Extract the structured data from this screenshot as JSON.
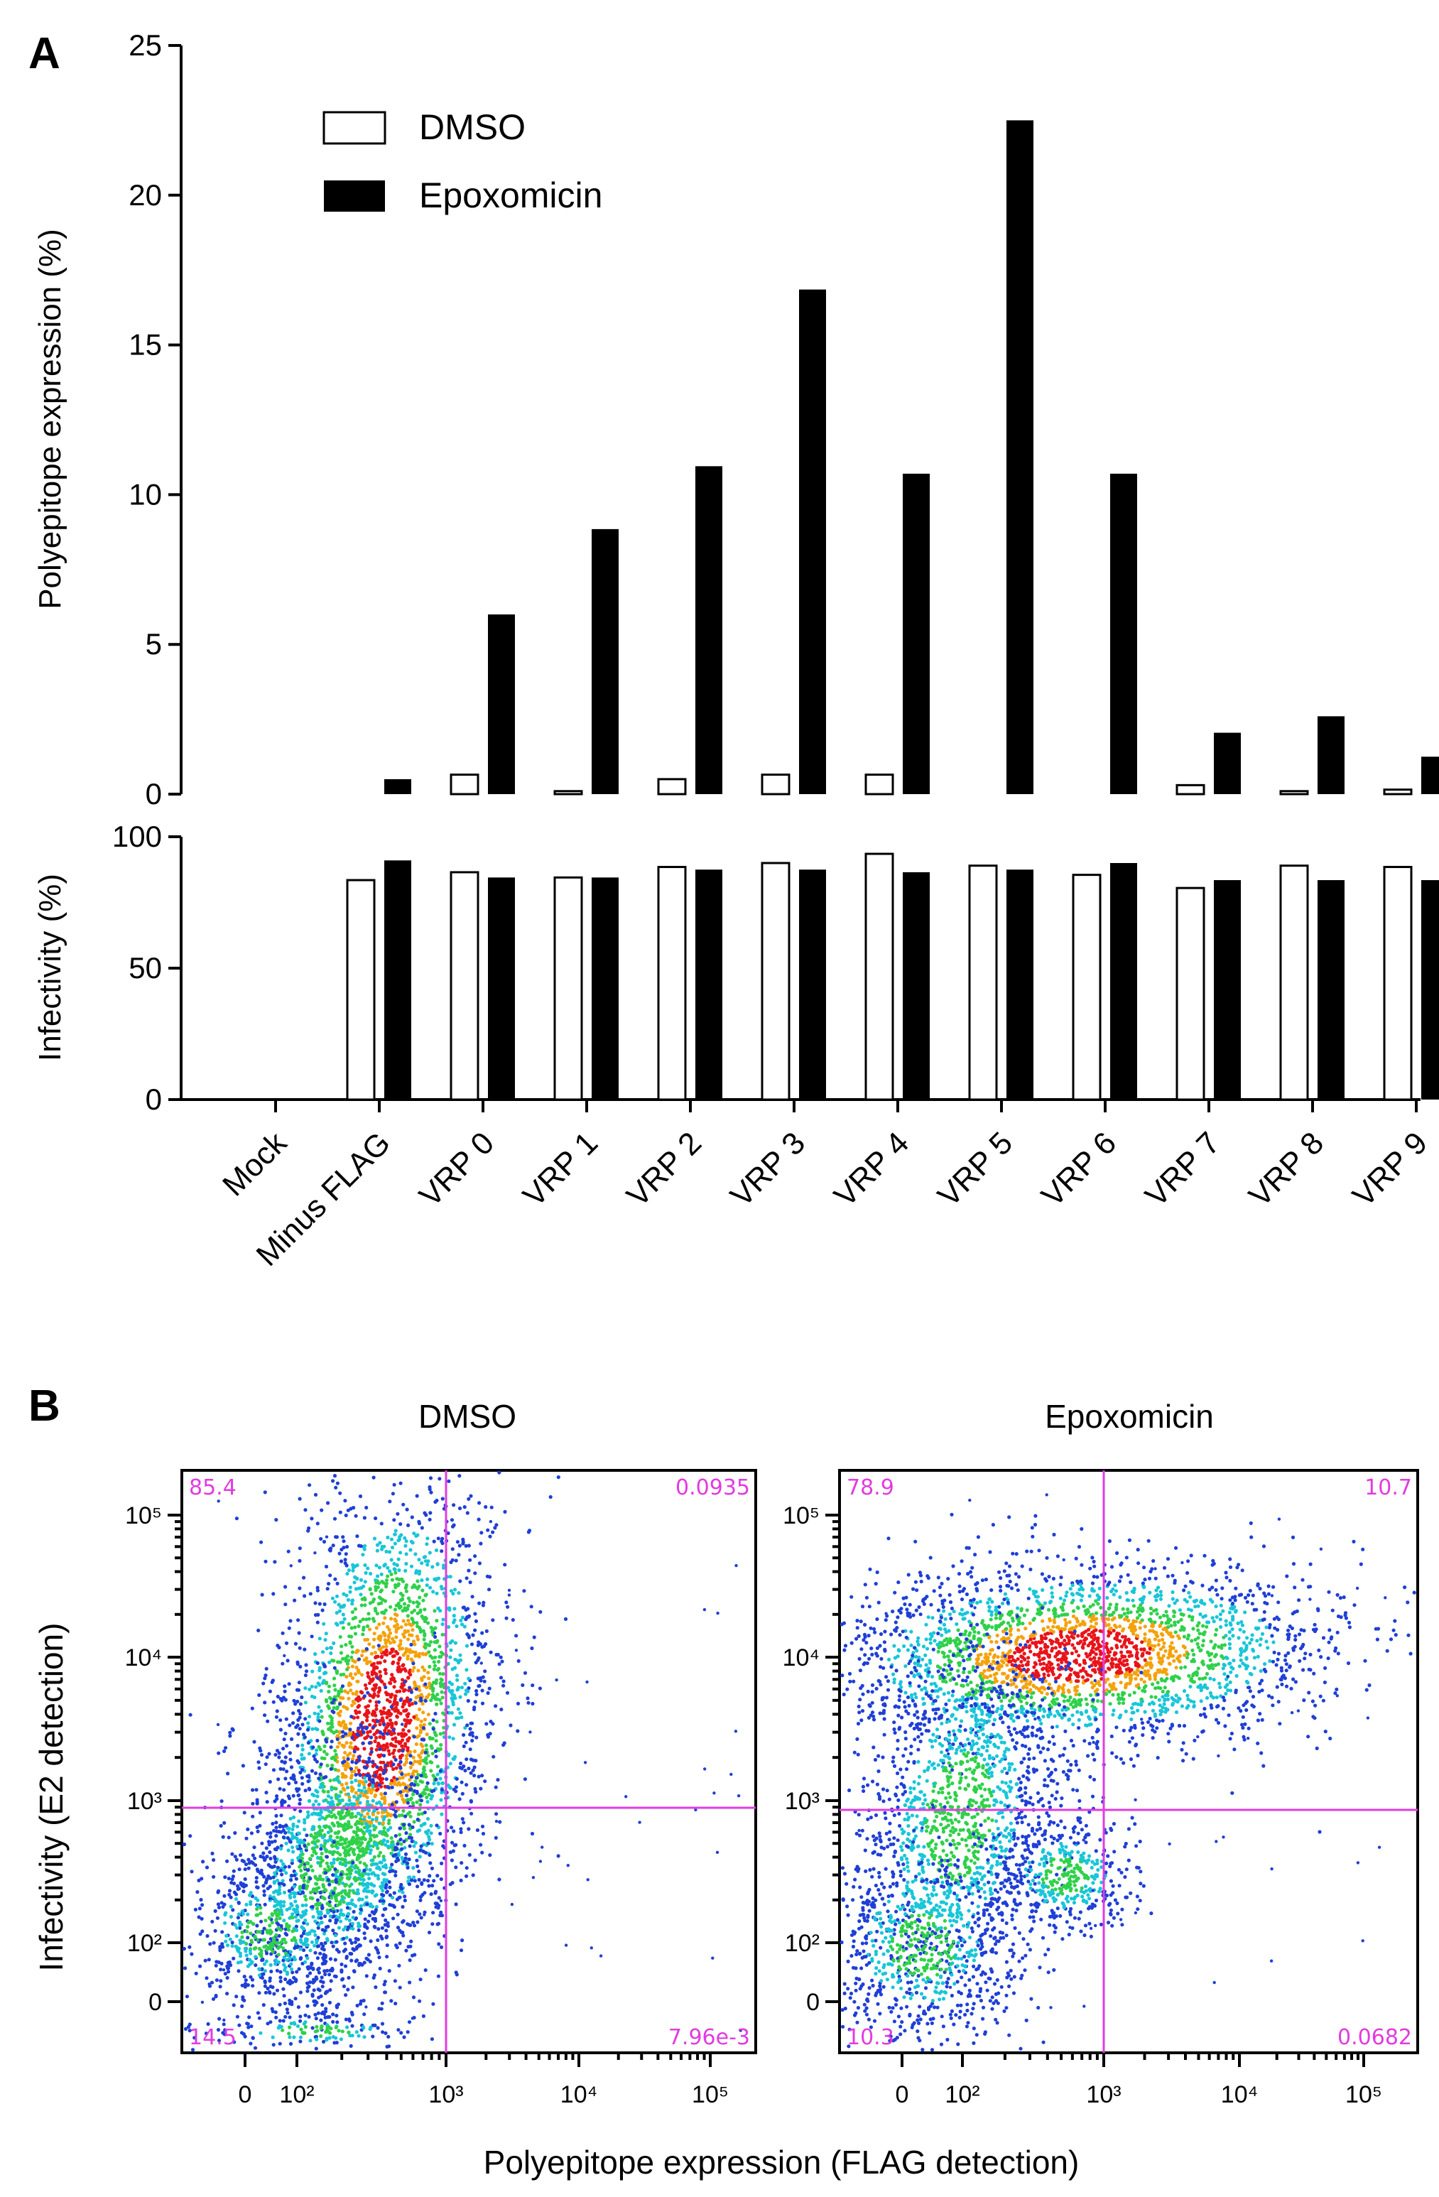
{
  "panels": {
    "a_label": "A",
    "b_label": "B"
  },
  "chart_data": [
    {
      "type": "bar",
      "panel": "A (top)",
      "ylabel": "Polyepitope expression (%)",
      "ylim": [
        0,
        25
      ],
      "yticks": [
        0,
        5,
        10,
        15,
        20,
        25
      ],
      "categories": [
        "Mock",
        "Minus FLAG",
        "VRP 0",
        "VRP 1",
        "VRP 2",
        "VRP 3",
        "VRP 4",
        "VRP 5",
        "VRP 6",
        "VRP 7",
        "VRP 8",
        "VRP 9"
      ],
      "legend": [
        "DMSO",
        "Epoxomicin"
      ],
      "legend_position": "top-left",
      "series": [
        {
          "name": "DMSO",
          "values": [
            0,
            0,
            0.65,
            0.1,
            0.5,
            0.65,
            0.65,
            0,
            0,
            0.3,
            0.1,
            0.15
          ]
        },
        {
          "name": "Epoxomicin",
          "values": [
            0,
            0.5,
            6.0,
            8.85,
            10.95,
            16.85,
            10.7,
            22.5,
            10.7,
            2.05,
            2.6,
            1.25
          ]
        }
      ]
    },
    {
      "type": "bar",
      "panel": "A (bottom)",
      "ylabel": "Infectivity (%)",
      "ylim": [
        0,
        100
      ],
      "yticks": [
        0,
        50,
        100
      ],
      "categories": [
        "Mock",
        "Minus FLAG",
        "VRP 0",
        "VRP 1",
        "VRP 2",
        "VRP 3",
        "VRP 4",
        "VRP 5",
        "VRP 6",
        "VRP 7",
        "VRP 8",
        "VRP 9"
      ],
      "series": [
        {
          "name": "DMSO",
          "values": [
            0,
            83.5,
            86.5,
            84.5,
            88.5,
            90,
            93.5,
            89,
            85.5,
            80.5,
            89,
            88.5
          ]
        },
        {
          "name": "Epoxomicin",
          "values": [
            0,
            91,
            84.5,
            84.5,
            87.5,
            87.5,
            86.5,
            87.5,
            90,
            83.5,
            83.5,
            83.5
          ]
        }
      ]
    },
    {
      "type": "scatter",
      "panel": "B (left)",
      "title": "DMSO",
      "xlabel": "Polyepitope expression (FLAG detection)",
      "ylabel": "Infectivity (E2 detection)",
      "x_ticks": [
        "0",
        "10²",
        "10³",
        "10⁴",
        "10⁵"
      ],
      "y_ticks": [
        "0",
        "10²",
        "10³",
        "10⁴",
        "10⁵"
      ],
      "quadrants": {
        "upper_left": "85.4",
        "upper_right": "0.0935",
        "lower_left": "14.5",
        "lower_right": "7.96e-3"
      }
    },
    {
      "type": "scatter",
      "panel": "B (right)",
      "title": "Epoxomicin",
      "xlabel": "Polyepitope expression (FLAG detection)",
      "ylabel": "Infectivity (E2 detection)",
      "x_ticks": [
        "0",
        "10²",
        "10³",
        "10⁴",
        "10⁵"
      ],
      "y_ticks": [
        "0",
        "10²",
        "10³",
        "10⁴",
        "10⁵"
      ],
      "quadrants": {
        "upper_left": "78.9",
        "upper_right": "10.7",
        "lower_left": "10.3",
        "lower_right": "0.0682"
      }
    }
  ]
}
